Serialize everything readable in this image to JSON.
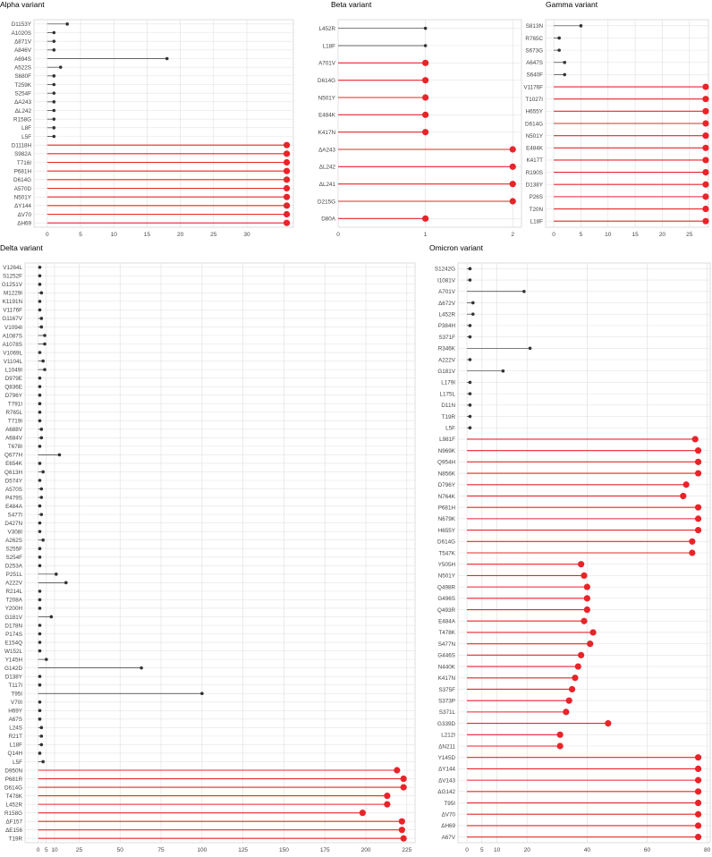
{
  "panels": [
    {
      "title": "Alpha variant",
      "chart_data": {
        "type": "lollipop",
        "xlim": [
          -2,
          37
        ],
        "xticks": [
          0,
          5,
          10,
          15,
          20,
          25,
          30
        ],
        "grid": true,
        "categories": [
          "D1153Y",
          "A1020S",
          "Δ871V",
          "A846V",
          "A694S",
          "A522S",
          "S680F",
          "T259K",
          "S254F",
          "ΔA243",
          "ΔL242",
          "R158G",
          "L8F",
          "L5F",
          "D1118H",
          "S982A",
          "T716I",
          "P681H",
          "D614G",
          "A570D",
          "N501Y",
          "ΔY144",
          "ΔV70",
          "ΔH69"
        ],
        "values": [
          3,
          1,
          1,
          1,
          18,
          2,
          1,
          1,
          1,
          1,
          1,
          1,
          1,
          1,
          36,
          36,
          36,
          36,
          36,
          36,
          36,
          36,
          36,
          36
        ],
        "highlight": [
          false,
          false,
          false,
          false,
          false,
          false,
          false,
          false,
          false,
          false,
          false,
          false,
          false,
          false,
          true,
          true,
          true,
          true,
          true,
          true,
          true,
          true,
          true,
          true
        ]
      }
    },
    {
      "title": "Beta variant",
      "chart_data": {
        "type": "lollipop",
        "xlim": [
          0,
          2.1
        ],
        "xticks": [
          0,
          1,
          2
        ],
        "grid": true,
        "categories": [
          "L452R",
          "L18F",
          "A701V",
          "D614G",
          "N501Y",
          "E484K",
          "K417N",
          "ΔA243",
          "ΔL242",
          "ΔL241",
          "D215G",
          "D80A"
        ],
        "values": [
          1,
          1,
          1,
          1,
          1,
          1,
          1,
          2,
          2,
          2,
          2,
          1
        ],
        "highlight": [
          false,
          false,
          true,
          true,
          true,
          true,
          true,
          true,
          true,
          true,
          true,
          true
        ]
      }
    },
    {
      "title": "Gamma variant",
      "chart_data": {
        "type": "lollipop",
        "xlim": [
          -1.5,
          28.5
        ],
        "xticks": [
          0,
          5,
          10,
          15,
          20,
          25
        ],
        "grid": true,
        "categories": [
          "S813N",
          "R765C",
          "S673G",
          "A647S",
          "S640F",
          "V1176F",
          "T1027I",
          "H655Y",
          "D614G",
          "N501Y",
          "E484K",
          "K417T",
          "R190S",
          "D138Y",
          "P26S",
          "T20N",
          "L18F"
        ],
        "values": [
          5,
          1,
          1,
          2,
          2,
          28,
          28,
          28,
          28,
          28,
          28,
          28,
          28,
          28,
          28,
          28,
          28
        ],
        "highlight": [
          false,
          false,
          false,
          false,
          false,
          true,
          true,
          true,
          true,
          true,
          true,
          true,
          true,
          true,
          true,
          true,
          true
        ]
      }
    },
    {
      "title": "Delta variant",
      "chart_data": {
        "type": "lollipop",
        "xlim": [
          -8,
          230
        ],
        "xticks": [
          0,
          5,
          10,
          25,
          50,
          75,
          100,
          125,
          150,
          175,
          200,
          225
        ],
        "grid": true,
        "categories": [
          "V1264L",
          "S1252F",
          "G1251V",
          "M1229I",
          "K1191N",
          "V1176F",
          "G1167V",
          "V1094I",
          "A1087S",
          "A1078S",
          "V1069L",
          "V1104L",
          "L1049I",
          "D979E",
          "Q836E",
          "D796Y",
          "T791I",
          "R765L",
          "T719I",
          "A688V",
          "A684V",
          "T678I",
          "Q677H",
          "E654K",
          "Q613H",
          "D574Y",
          "A570S",
          "P479S",
          "E484A",
          "S477I",
          "D427N",
          "V308I",
          "A262S",
          "S255F",
          "S254F",
          "D253A",
          "P251L",
          "A222V",
          "R214L",
          "T208A",
          "Y200H",
          "G181V",
          "D178N",
          "P174S",
          "E154Q",
          "W152L",
          "Y145H",
          "G142D",
          "D138Y",
          "T117I",
          "T95I",
          "V70I",
          "H69Y",
          "A67S",
          "L24S",
          "R21T",
          "L18F",
          "Q14H",
          "L5F",
          "D950N",
          "P681R",
          "D614G",
          "T478K",
          "L452R",
          "R158G",
          "ΔF157",
          "ΔE156",
          "T19R"
        ],
        "values": [
          1,
          1,
          1,
          2,
          1,
          1,
          2,
          2,
          4,
          4,
          1,
          3,
          4,
          1,
          1,
          1,
          1,
          1,
          1,
          2,
          2,
          1,
          13,
          1,
          3,
          1,
          2,
          2,
          1,
          2,
          1,
          1,
          3,
          1,
          1,
          1,
          11,
          17,
          1,
          1,
          1,
          8,
          1,
          1,
          1,
          1,
          5,
          63,
          1,
          1,
          100,
          1,
          1,
          1,
          2,
          2,
          2,
          1,
          3,
          219,
          223,
          223,
          213,
          213,
          198,
          222,
          222,
          223
        ],
        "highlight": [
          false,
          false,
          false,
          false,
          false,
          false,
          false,
          false,
          false,
          false,
          false,
          false,
          false,
          false,
          false,
          false,
          false,
          false,
          false,
          false,
          false,
          false,
          false,
          false,
          false,
          false,
          false,
          false,
          false,
          false,
          false,
          false,
          false,
          false,
          false,
          false,
          false,
          false,
          false,
          false,
          false,
          false,
          false,
          false,
          false,
          false,
          false,
          false,
          false,
          false,
          false,
          false,
          false,
          false,
          false,
          false,
          false,
          false,
          false,
          true,
          true,
          true,
          true,
          true,
          true,
          true,
          true,
          true
        ]
      }
    },
    {
      "title": "Omicron variant",
      "chart_data": {
        "type": "lollipop",
        "xlim": [
          -3,
          81
        ],
        "xticks": [
          0,
          5,
          10,
          20,
          40,
          60,
          80
        ],
        "grid": true,
        "categories": [
          "S1242G",
          "I1081V",
          "A701V",
          "Δ672V",
          "L452R",
          "P384H",
          "S371F",
          "R346K",
          "A222V",
          "G181V",
          "L179I",
          "L175L",
          "D11N",
          "T19R",
          "L5F",
          "L981F",
          "N969K",
          "Q954H",
          "N856K",
          "D796Y",
          "N764K",
          "P681H",
          "N679K",
          "H655Y",
          "D614G",
          "T547K",
          "Y505H",
          "N501Y",
          "Q498R",
          "G496S",
          "Q493R",
          "E484A",
          "T478K",
          "S477N",
          "G446S",
          "N440K",
          "K417N",
          "S375F",
          "S373P",
          "S371L",
          "G339D",
          "L212I",
          "ΔN211",
          "Y145D",
          "ΔY144",
          "ΔV143",
          "ΔG142",
          "T95I",
          "ΔV70",
          "ΔH69",
          "A67V"
        ],
        "values": [
          1,
          1,
          19,
          2,
          2,
          1,
          1,
          21,
          1,
          12,
          1,
          1,
          1,
          1,
          1,
          76,
          77,
          77,
          77,
          73,
          72,
          77,
          77,
          77,
          75,
          75,
          38,
          39,
          40,
          40,
          40,
          39,
          42,
          41,
          38,
          37,
          36,
          35,
          34,
          33,
          47,
          31,
          31,
          77,
          77,
          77,
          77,
          77,
          77,
          77,
          77
        ],
        "highlight": [
          false,
          false,
          false,
          false,
          false,
          false,
          false,
          false,
          false,
          false,
          false,
          false,
          false,
          false,
          false,
          true,
          true,
          true,
          true,
          true,
          true,
          true,
          true,
          true,
          true,
          true,
          true,
          true,
          true,
          true,
          true,
          true,
          true,
          true,
          true,
          true,
          true,
          true,
          true,
          true,
          true,
          true,
          true,
          true,
          true,
          true,
          true,
          true,
          true,
          true,
          true
        ]
      }
    }
  ],
  "colors": {
    "highlight": "#e8242a",
    "normal": "#333333",
    "grid": "#e3e3e3",
    "panel_border": "#d4d4d4",
    "tick_text": "#444444"
  }
}
